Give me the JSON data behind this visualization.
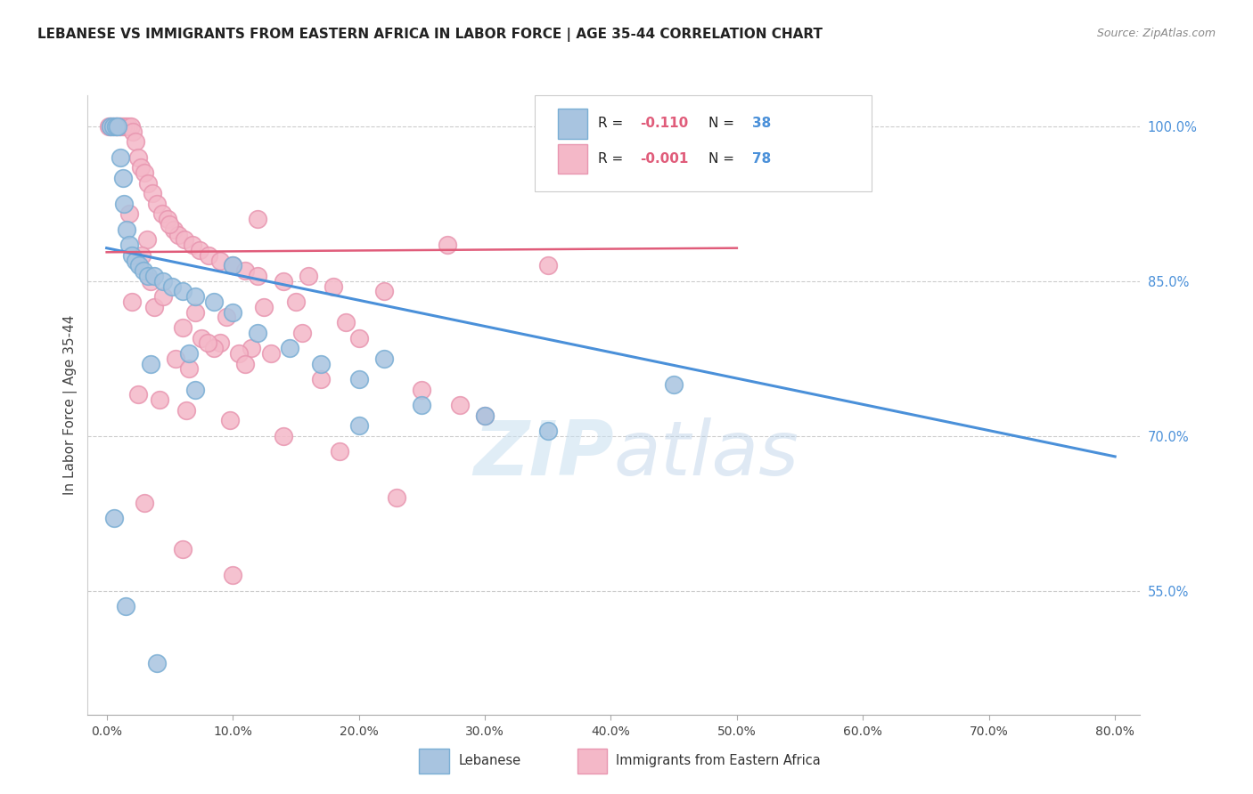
{
  "title": "LEBANESE VS IMMIGRANTS FROM EASTERN AFRICA IN LABOR FORCE | AGE 35-44 CORRELATION CHART",
  "source": "Source: ZipAtlas.com",
  "ylabel": "In Labor Force | Age 35-44",
  "xlabel_vals": [
    0.0,
    10.0,
    20.0,
    30.0,
    40.0,
    50.0,
    60.0,
    70.0,
    80.0
  ],
  "ylabel_ticks": [
    "100.0%",
    "85.0%",
    "70.0%",
    "55.0%"
  ],
  "ylabel_vals": [
    100.0,
    85.0,
    70.0,
    55.0
  ],
  "ylim": [
    43.0,
    103.0
  ],
  "xlim": [
    -1.5,
    82.0
  ],
  "legend_r_blue": "-0.110",
  "legend_n_blue": "38",
  "legend_r_pink": "-0.001",
  "legend_n_pink": "78",
  "color_blue_fill": "#a8c4e0",
  "color_pink_fill": "#f4b8c8",
  "color_blue_edge": "#7aaed4",
  "color_pink_edge": "#e896b0",
  "color_blue_line": "#4a90d9",
  "color_pink_line": "#e05c7a",
  "color_grid": "#cccccc",
  "color_title": "#222222",
  "color_source": "#888888",
  "color_r_value": "#e05c7a",
  "color_n_value": "#4a90d9",
  "watermark_zip": "ZIP",
  "watermark_atlas": "atlas",
  "blue_dots_x": [
    0.3,
    0.5,
    0.7,
    0.9,
    1.1,
    1.3,
    1.4,
    1.6,
    1.8,
    2.0,
    2.3,
    2.6,
    2.9,
    3.3,
    3.8,
    4.5,
    5.2,
    6.0,
    7.0,
    8.5,
    10.0,
    12.0,
    14.5,
    17.0,
    20.0,
    25.0,
    30.0,
    35.0,
    10.0,
    22.0,
    45.0,
    3.5,
    7.0,
    0.6,
    1.5,
    4.0,
    6.5,
    20.0
  ],
  "blue_dots_y": [
    100.0,
    100.0,
    100.0,
    100.0,
    97.0,
    95.0,
    92.5,
    90.0,
    88.5,
    87.5,
    87.0,
    86.5,
    86.0,
    85.5,
    85.5,
    85.0,
    84.5,
    84.0,
    83.5,
    83.0,
    82.0,
    80.0,
    78.5,
    77.0,
    75.5,
    73.0,
    72.0,
    70.5,
    86.5,
    77.5,
    75.0,
    77.0,
    74.5,
    62.0,
    53.5,
    48.0,
    78.0,
    71.0
  ],
  "pink_dots_x": [
    0.2,
    0.3,
    0.5,
    0.7,
    0.8,
    1.0,
    1.1,
    1.3,
    1.5,
    1.7,
    1.9,
    2.1,
    2.3,
    2.5,
    2.7,
    3.0,
    3.3,
    3.6,
    4.0,
    4.4,
    4.8,
    5.3,
    5.7,
    6.2,
    6.8,
    7.4,
    8.1,
    9.0,
    10.0,
    11.0,
    12.0,
    14.0,
    16.0,
    18.0,
    3.2,
    5.0,
    7.0,
    9.5,
    12.5,
    15.0,
    19.0,
    22.0,
    27.0,
    12.0,
    35.0,
    2.0,
    3.8,
    6.0,
    9.0,
    11.5,
    15.5,
    20.0,
    7.5,
    10.5,
    4.5,
    8.5,
    13.0,
    17.0,
    5.5,
    6.5,
    3.5,
    2.8,
    1.8,
    8.0,
    11.0,
    25.0,
    28.0,
    30.0,
    2.5,
    4.2,
    6.3,
    9.8,
    14.0,
    18.5,
    23.0,
    3.0,
    6.0,
    10.0
  ],
  "pink_dots_y": [
    100.0,
    100.0,
    100.0,
    100.0,
    100.0,
    100.0,
    100.0,
    100.0,
    100.0,
    100.0,
    100.0,
    99.5,
    98.5,
    97.0,
    96.0,
    95.5,
    94.5,
    93.5,
    92.5,
    91.5,
    91.0,
    90.0,
    89.5,
    89.0,
    88.5,
    88.0,
    87.5,
    87.0,
    86.5,
    86.0,
    85.5,
    85.0,
    85.5,
    84.5,
    89.0,
    90.5,
    82.0,
    81.5,
    82.5,
    83.0,
    81.0,
    84.0,
    88.5,
    91.0,
    86.5,
    83.0,
    82.5,
    80.5,
    79.0,
    78.5,
    80.0,
    79.5,
    79.5,
    78.0,
    83.5,
    78.5,
    78.0,
    75.5,
    77.5,
    76.5,
    85.0,
    87.5,
    91.5,
    79.0,
    77.0,
    74.5,
    73.0,
    72.0,
    74.0,
    73.5,
    72.5,
    71.5,
    70.0,
    68.5,
    64.0,
    63.5,
    59.0,
    56.5
  ]
}
